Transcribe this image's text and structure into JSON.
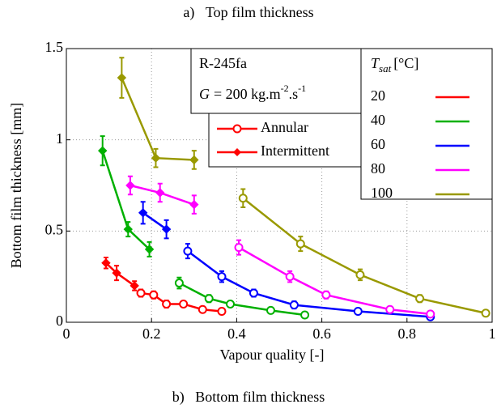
{
  "chart_data": {
    "type": "line",
    "title": "a)   Top film thickness",
    "caption": "b)   Bottom film thickness",
    "x_label": "Vapour quality [-]",
    "y_label": "Bottom film thickness [mm]",
    "xlim": [
      0,
      1
    ],
    "ylim": [
      0,
      1.5
    ],
    "xticks": [
      0,
      0.2,
      0.4,
      0.6,
      0.8,
      1
    ],
    "yticks": [
      0,
      0.5,
      1,
      1.5
    ],
    "grid": true,
    "info_box": {
      "fluid": "R-245fa",
      "flux": [
        "G",
        "= 200 kg.m",
        "-2",
        ".s",
        "-1"
      ]
    },
    "marker_legend": [
      {
        "label": "Annular",
        "marker": "circle"
      },
      {
        "label": "Intermittent",
        "marker": "diamond"
      }
    ],
    "legend_title": {
      "symbol": "T",
      "subscript": "sat",
      "unit": "[°C]"
    },
    "groups": [
      {
        "name": "20",
        "color": "#ff0000",
        "annular": {
          "x": [
            0.175,
            0.205,
            0.235,
            0.275,
            0.32,
            0.365
          ],
          "values": [
            0.16,
            0.15,
            0.1,
            0.1,
            0.07,
            0.06
          ],
          "errors": [
            0.02,
            0.02,
            0.02,
            0.015,
            0.015,
            0.015
          ]
        },
        "intermittent": {
          "x": [
            0.093,
            0.118,
            0.16
          ],
          "values": [
            0.325,
            0.27,
            0.2
          ],
          "errors": [
            0.03,
            0.04,
            0.025
          ]
        }
      },
      {
        "name": "40",
        "color": "#00b000",
        "annular": {
          "x": [
            0.265,
            0.335,
            0.385,
            0.48,
            0.56
          ],
          "values": [
            0.215,
            0.13,
            0.1,
            0.065,
            0.04
          ],
          "errors": [
            0.03,
            0.02,
            0.015,
            0.015,
            0.015
          ]
        },
        "intermittent": {
          "x": [
            0.085,
            0.145,
            0.195
          ],
          "values": [
            0.94,
            0.51,
            0.4
          ],
          "errors": [
            0.08,
            0.04,
            0.04
          ]
        }
      },
      {
        "name": "60",
        "color": "#0000ff",
        "annular": {
          "x": [
            0.285,
            0.365,
            0.44,
            0.535,
            0.685,
            0.855
          ],
          "values": [
            0.39,
            0.25,
            0.16,
            0.095,
            0.06,
            0.03
          ],
          "errors": [
            0.04,
            0.03,
            0.02,
            0.02,
            0.015,
            0.015
          ]
        },
        "intermittent": {
          "x": [
            0.18,
            0.235
          ],
          "values": [
            0.6,
            0.51
          ],
          "errors": [
            0.06,
            0.05
          ]
        }
      },
      {
        "name": "80",
        "color": "#ff00ff",
        "annular": {
          "x": [
            0.405,
            0.525,
            0.61,
            0.76,
            0.855
          ],
          "values": [
            0.41,
            0.25,
            0.15,
            0.07,
            0.045
          ],
          "errors": [
            0.04,
            0.03,
            0.02,
            0.015,
            0.015
          ]
        },
        "intermittent": {
          "x": [
            0.15,
            0.22,
            0.3
          ],
          "values": [
            0.75,
            0.71,
            0.645
          ],
          "errors": [
            0.05,
            0.05,
            0.05
          ]
        }
      },
      {
        "name": "100",
        "color": "#999900",
        "annular": {
          "x": [
            0.415,
            0.55,
            0.69,
            0.83,
            0.985
          ],
          "values": [
            0.68,
            0.43,
            0.26,
            0.13,
            0.05
          ],
          "errors": [
            0.05,
            0.04,
            0.03,
            0.02,
            0.015
          ]
        },
        "intermittent": {
          "x": [
            0.13,
            0.21,
            0.3
          ],
          "values": [
            1.34,
            0.9,
            0.89
          ],
          "errors": [
            0.11,
            0.05,
            0.05
          ]
        }
      }
    ]
  }
}
